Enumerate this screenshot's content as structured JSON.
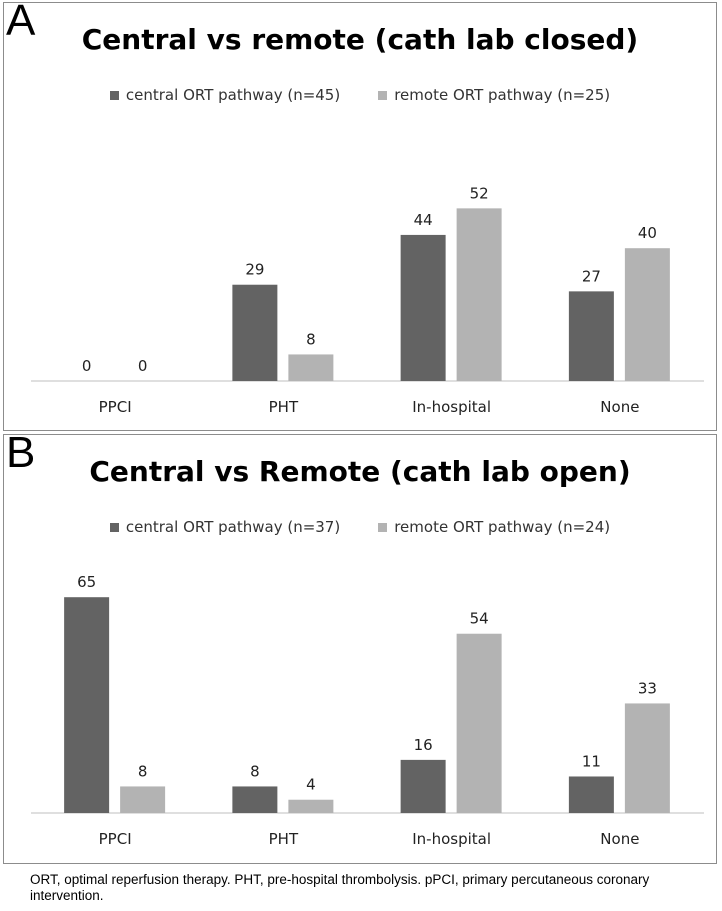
{
  "panels": [
    {
      "letter": "A",
      "legend": {
        "series1": "central ORT pathway (n=45)",
        "series2": "remote ORT pathway (n=25)"
      }
    },
    {
      "letter": "B",
      "legend": {
        "series1": "central ORT pathway (n=37)",
        "series2": "remote ORT pathway (n=24)"
      }
    }
  ],
  "caption": "ORT, optimal reperfusion therapy. PHT, pre-hospital thrombolysis. pPCI, primary percutaneous coronary intervention.",
  "colors": {
    "central": "#636363",
    "remote": "#b3b3b3",
    "axis": "#bfbfbf"
  },
  "chart_data": [
    {
      "type": "bar",
      "title": "Central vs remote (cath lab closed)",
      "categories": [
        "PPCI",
        "PHT",
        "In-hospital",
        "None"
      ],
      "series": [
        {
          "name": "central ORT pathway (n=45)",
          "values": [
            0,
            29,
            44,
            27
          ]
        },
        {
          "name": "remote ORT pathway (n=25)",
          "values": [
            0,
            8,
            52,
            40
          ]
        }
      ],
      "ylim": [
        0,
        75
      ],
      "grid": false,
      "legend_position": "top"
    },
    {
      "type": "bar",
      "title": "Central vs Remote (cath lab open)",
      "categories": [
        "PPCI",
        "PHT",
        "In-hospital",
        "None"
      ],
      "series": [
        {
          "name": "central ORT pathway (n=37)",
          "values": [
            65,
            8,
            16,
            11
          ]
        },
        {
          "name": "remote ORT pathway (n=24)",
          "values": [
            8,
            4,
            54,
            33
          ]
        }
      ],
      "ylim": [
        0,
        75
      ],
      "grid": false,
      "legend_position": "top"
    }
  ]
}
